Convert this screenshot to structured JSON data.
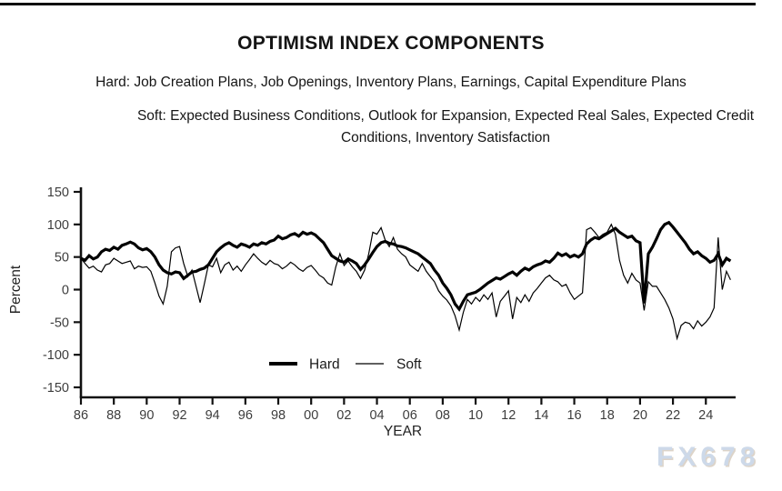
{
  "header": {
    "title": "OPTIMISM INDEX COMPONENTS",
    "hard_line": "Hard: Job Creation Plans, Job Openings, Inventory Plans, Earnings, Capital Expenditure Plans",
    "soft_line": "Soft: Expected Business Conditions, Outlook for Expansion, Expected Real Sales, Expected Credit Conditions, Inventory Satisfaction"
  },
  "watermark": "FX678",
  "colors": {
    "line": "#000000",
    "axis": "#111111",
    "tick_text": "#3d3d3d",
    "axis_label_text": "#222222",
    "watermark": "#cdd9e9",
    "top_rule": "#0d0d0d",
    "background": "#ffffff"
  },
  "chart_data": {
    "type": "line",
    "title": "OPTIMISM INDEX COMPONENTS",
    "xlabel": "YEAR",
    "ylabel": "Percent",
    "ylim": [
      -150,
      150
    ],
    "yticks": [
      150,
      100,
      50,
      0,
      -50,
      -100,
      -150
    ],
    "xlim": [
      1986,
      2025.7
    ],
    "xtick_years": [
      1986,
      1988,
      1990,
      1992,
      1994,
      1996,
      1998,
      2000,
      2002,
      2004,
      2006,
      2008,
      2010,
      2012,
      2014,
      2016,
      2018,
      2020,
      2022,
      2024
    ],
    "xtick_labels": [
      "86",
      "88",
      "90",
      "92",
      "94",
      "96",
      "98",
      "00",
      "02",
      "04",
      "06",
      "08",
      "10",
      "12",
      "14",
      "16",
      "18",
      "20",
      "22",
      "24"
    ],
    "legend": [
      "Hard",
      "Soft"
    ],
    "legend_position": "bottom-center-inside",
    "grid": false,
    "x_start": 1986,
    "x_step": 0.25,
    "series": [
      {
        "name": "Hard",
        "stroke_width": 3.2,
        "values": [
          48,
          45,
          52,
          47,
          50,
          58,
          62,
          60,
          65,
          62,
          68,
          70,
          73,
          70,
          64,
          61,
          63,
          58,
          50,
          38,
          30,
          26,
          24,
          27,
          26,
          17,
          22,
          27,
          28,
          31,
          33,
          38,
          48,
          58,
          64,
          69,
          72,
          68,
          65,
          70,
          68,
          65,
          70,
          68,
          72,
          70,
          74,
          76,
          82,
          78,
          80,
          84,
          86,
          82,
          88,
          85,
          87,
          84,
          78,
          72,
          62,
          52,
          48,
          44,
          42,
          47,
          44,
          40,
          31,
          38,
          47,
          57,
          66,
          72,
          74,
          71,
          70,
          67,
          66,
          64,
          61,
          58,
          55,
          50,
          45,
          40,
          30,
          22,
          10,
          2,
          -8,
          -22,
          -30,
          -18,
          -8,
          -6,
          -4,
          0,
          5,
          10,
          14,
          18,
          16,
          20,
          24,
          27,
          22,
          28,
          33,
          30,
          35,
          38,
          40,
          44,
          42,
          48,
          56,
          52,
          55,
          50,
          53,
          50,
          55,
          70,
          76,
          80,
          78,
          82,
          86,
          90,
          94,
          88,
          84,
          80,
          82,
          75,
          72,
          -21,
          55,
          65,
          78,
          92,
          100,
          103,
          96,
          88,
          80,
          72,
          62,
          55,
          58,
          52,
          48,
          42,
          45,
          55,
          38,
          48,
          44
        ]
      },
      {
        "name": "Soft",
        "stroke_width": 1.2,
        "values": [
          48,
          40,
          33,
          36,
          30,
          27,
          38,
          40,
          48,
          44,
          40,
          42,
          44,
          32,
          36,
          34,
          35,
          28,
          10,
          -10,
          -22,
          5,
          58,
          64,
          66,
          40,
          20,
          30,
          5,
          -20,
          8,
          38,
          35,
          48,
          26,
          38,
          42,
          30,
          36,
          28,
          38,
          46,
          55,
          48,
          42,
          38,
          45,
          40,
          38,
          32,
          36,
          42,
          38,
          32,
          28,
          34,
          37,
          30,
          22,
          18,
          10,
          7,
          35,
          55,
          37,
          44,
          35,
          28,
          17,
          30,
          55,
          88,
          85,
          95,
          76,
          66,
          80,
          62,
          55,
          50,
          38,
          33,
          28,
          40,
          28,
          20,
          12,
          -2,
          -10,
          -16,
          -25,
          -40,
          -62,
          -35,
          -15,
          -22,
          -12,
          -18,
          -8,
          -15,
          -5,
          -42,
          -18,
          -10,
          -2,
          -45,
          -12,
          -20,
          -8,
          -18,
          -5,
          2,
          10,
          18,
          22,
          15,
          12,
          5,
          8,
          -5,
          -15,
          -10,
          -5,
          92,
          95,
          88,
          80,
          85,
          88,
          100,
          85,
          45,
          22,
          10,
          25,
          15,
          10,
          -32,
          12,
          5,
          5,
          -5,
          -15,
          -28,
          -45,
          -75,
          -55,
          -50,
          -52,
          -60,
          -48,
          -56,
          -50,
          -42,
          -28,
          80,
          0,
          28,
          15
        ]
      }
    ]
  }
}
